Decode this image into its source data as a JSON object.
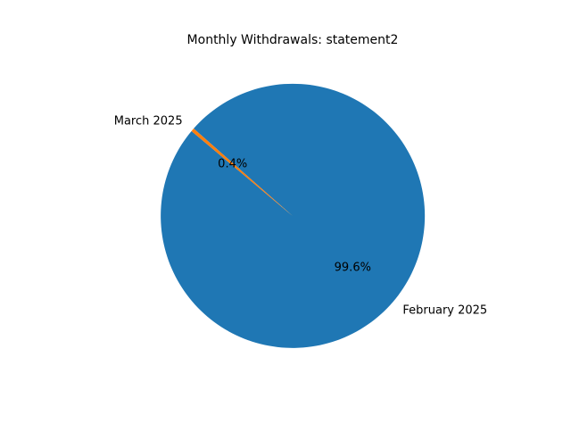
{
  "chart_data": {
    "type": "pie",
    "title": "Monthly Withdrawals: statement2",
    "slices": [
      {
        "label": "February 2025",
        "percent_label": "99.6%",
        "share": 0.996,
        "color": "#1f77b4"
      },
      {
        "label": "March 2025",
        "percent_label": "0.4%",
        "share": 0.004,
        "color": "#ff7f0e"
      }
    ],
    "start_angle_deg": 140,
    "direction": "counterclockwise",
    "legend": "none"
  }
}
